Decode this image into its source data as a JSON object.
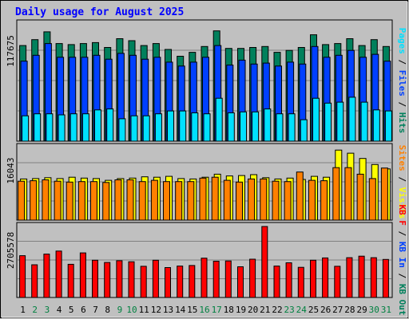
{
  "colors": {
    "background": "#c0c0c0",
    "title": "#0000ff",
    "hits": "#00805c",
    "files": "#0040ff",
    "pages": "#00e0ff",
    "visits": "#ffff00",
    "sites": "#ff8000",
    "kb": "#ff0000",
    "weekend_day_label": "#008040"
  },
  "chart_data": [
    {
      "type": "bar",
      "title": "Daily usage for August 2025",
      "ylabel_top": "117675",
      "legend": [
        "Pages",
        "Files",
        "Hits"
      ],
      "legend_separator": "/",
      "categories": [
        "1",
        "2",
        "3",
        "4",
        "5",
        "6",
        "7",
        "8",
        "9",
        "10",
        "11",
        "12",
        "13",
        "14",
        "15",
        "16",
        "17",
        "18",
        "19",
        "20",
        "21",
        "22",
        "23",
        "24",
        "25",
        "26",
        "27",
        "28",
        "29",
        "30",
        "31"
      ],
      "weekend_days": [
        "2",
        "3",
        "9",
        "10",
        "16",
        "17",
        "23",
        "24",
        "30",
        "31"
      ],
      "ylim": [
        0,
        117675
      ],
      "series": [
        {
          "name": "Hits",
          "values": [
            98000,
            104000,
            112000,
            100000,
            99000,
            100000,
            101000,
            96000,
            105000,
            103000,
            98000,
            100000,
            94000,
            87000,
            91000,
            97000,
            113000,
            95000,
            95000,
            96000,
            97000,
            91000,
            93000,
            96000,
            109000,
            99000,
            100000,
            105000,
            98000,
            104000,
            97000
          ]
        },
        {
          "name": "Files",
          "values": [
            82000,
            88000,
            100000,
            86000,
            86000,
            86000,
            88000,
            84000,
            90000,
            88000,
            84000,
            86000,
            81000,
            77000,
            81000,
            86000,
            98000,
            78000,
            83000,
            79000,
            80000,
            77000,
            81000,
            79000,
            97000,
            86000,
            88000,
            93000,
            86000,
            89000,
            82000
          ]
        },
        {
          "name": "Pages",
          "values": [
            26000,
            28000,
            28000,
            27000,
            28000,
            28000,
            32000,
            33000,
            23000,
            26000,
            26000,
            28000,
            31000,
            31000,
            29000,
            28000,
            44000,
            29000,
            30000,
            30000,
            33000,
            28000,
            28000,
            22000,
            44000,
            39000,
            40000,
            45000,
            40000,
            32000,
            31000
          ]
        }
      ]
    },
    {
      "type": "bar",
      "ylabel_top": "16043",
      "legend": [
        "Visits",
        "Sites"
      ],
      "legend_separator": "/",
      "ylim": [
        0,
        16043
      ],
      "series": [
        {
          "name": "Visits",
          "values": [
            9400,
            9500,
            9700,
            9500,
            9800,
            9600,
            9500,
            9100,
            9500,
            9600,
            9900,
            9800,
            10000,
            9500,
            9400,
            9800,
            10500,
            10100,
            10200,
            10400,
            9700,
            9400,
            9600,
            9300,
            10000,
            9800,
            16000,
            15300,
            14100,
            12700,
            11700
          ]
        },
        {
          "name": "Sites",
          "values": [
            8900,
            9000,
            9200,
            8900,
            8700,
            8800,
            8800,
            8600,
            9200,
            9200,
            8800,
            9100,
            8800,
            8800,
            8800,
            9600,
            9800,
            9100,
            8700,
            9400,
            9400,
            8900,
            8800,
            11000,
            9100,
            9000,
            12000,
            12000,
            10500,
            9500,
            11900
          ]
        }
      ]
    },
    {
      "type": "bar",
      "ylabel_top": "2705578",
      "legend": [
        "KB F",
        "KB In",
        "KB Out"
      ],
      "legend_separator": "/",
      "ylim": [
        0,
        2705578
      ],
      "series": [
        {
          "name": "KB F",
          "values": [
            1650000,
            1290000,
            1710000,
            1830000,
            1310000,
            1760000,
            1470000,
            1380000,
            1450000,
            1410000,
            1230000,
            1470000,
            1180000,
            1240000,
            1260000,
            1550000,
            1430000,
            1440000,
            1210000,
            1510000,
            2800000,
            1240000,
            1370000,
            1190000,
            1470000,
            1560000,
            1230000,
            1570000,
            1630000,
            1570000,
            1500000
          ]
        }
      ]
    }
  ]
}
